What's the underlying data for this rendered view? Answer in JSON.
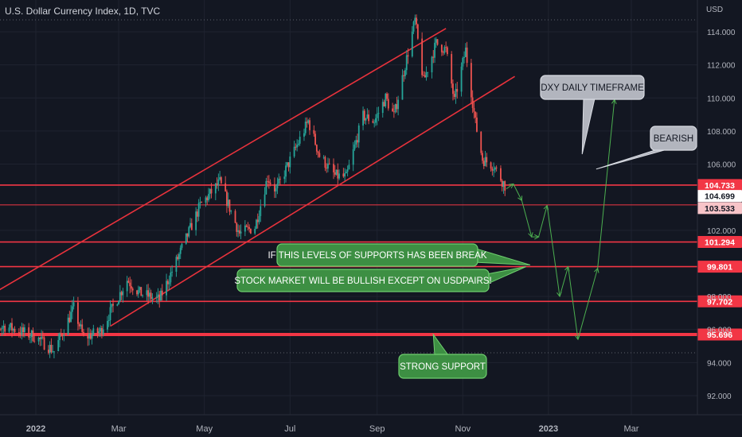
{
  "header": {
    "title": "U.S. Dollar Currency Index, 1D, TVC",
    "currency": "USD"
  },
  "colors": {
    "background": "#131722",
    "up": "#26a69a",
    "down": "#ef5350",
    "channel": "#e8323c",
    "level_line": "#f23645",
    "projection": "#4caf50",
    "callout_green": "#3d8f43",
    "callout_grey": "#b2b5be"
  },
  "chart_data": {
    "type": "candlestick",
    "instrument": "U.S. Dollar Currency Index",
    "timeframe": "1D",
    "ylim": [
      90.8,
      116.0
    ],
    "y_ticks": [
      {
        "v": 114,
        "label": "114.000"
      },
      {
        "v": 112,
        "label": "112.000"
      },
      {
        "v": 110,
        "label": "110.000"
      },
      {
        "v": 108,
        "label": "108.000"
      },
      {
        "v": 106,
        "label": "106.000"
      },
      {
        "v": 102,
        "label": "102.000"
      },
      {
        "v": 98,
        "label": "98.000"
      },
      {
        "v": 96,
        "label": "96.000"
      },
      {
        "v": 94,
        "label": "94.000"
      },
      {
        "v": 92,
        "label": "92.000"
      }
    ],
    "x_ticks": [
      {
        "date": "2022-01-01",
        "label": "2022"
      },
      {
        "date": "2022-03-01",
        "label": "Mar"
      },
      {
        "date": "2022-05-01",
        "label": "May"
      },
      {
        "date": "2022-07-01",
        "label": "Jul"
      },
      {
        "date": "2022-09-01",
        "label": "Sep"
      },
      {
        "date": "2022-11-01",
        "label": "Nov"
      },
      {
        "date": "2023-01-01",
        "label": "2023"
      },
      {
        "date": "2023-03-01",
        "label": "Mar"
      }
    ],
    "price_path": [
      [
        "2021-11-22",
        95.9
      ],
      [
        "2021-12-10",
        96.2
      ],
      [
        "2021-12-31",
        95.6
      ],
      [
        "2022-01-14",
        94.7
      ],
      [
        "2022-01-28",
        97.3
      ],
      [
        "2022-02-04",
        95.5
      ],
      [
        "2022-02-16",
        95.9
      ],
      [
        "2022-03-07",
        99.0
      ],
      [
        "2022-03-16",
        98.2
      ],
      [
        "2022-03-30",
        97.8
      ],
      [
        "2022-04-13",
        100.5
      ],
      [
        "2022-04-28",
        103.5
      ],
      [
        "2022-05-12",
        104.9
      ],
      [
        "2022-05-26",
        101.8
      ],
      [
        "2022-06-06",
        102.2
      ],
      [
        "2022-06-15",
        105.2
      ],
      [
        "2022-06-21",
        104.4
      ],
      [
        "2022-07-14",
        108.6
      ],
      [
        "2022-07-22",
        106.5
      ],
      [
        "2022-08-02",
        105.3
      ],
      [
        "2022-08-10",
        105.2
      ],
      [
        "2022-08-22",
        108.9
      ],
      [
        "2022-08-30",
        108.6
      ],
      [
        "2022-09-07",
        110.0
      ],
      [
        "2022-09-13",
        108.9
      ],
      [
        "2022-09-28",
        114.7
      ],
      [
        "2022-10-04",
        111.0
      ],
      [
        "2022-10-13",
        113.3
      ],
      [
        "2022-10-20",
        112.9
      ],
      [
        "2022-10-26",
        109.8
      ],
      [
        "2022-11-03",
        112.9
      ],
      [
        "2022-11-10",
        108.5
      ],
      [
        "2022-11-15",
        106.3
      ],
      [
        "2022-11-23",
        105.9
      ],
      [
        "2022-12-01",
        104.7
      ]
    ],
    "channel": {
      "upper": {
        "start": [
          "2021-11-22",
          97.7
        ],
        "end": [
          "2022-10-20",
          114.2
        ]
      },
      "lower": {
        "start": [
          "2022-02-23",
          96.2
        ],
        "end": [
          "2022-12-08",
          111.3
        ]
      }
    },
    "levels": [
      {
        "value": 104.733,
        "label": "104.733",
        "style": "filled"
      },
      {
        "value": 104.699,
        "label": "104.699",
        "style": "plain"
      },
      {
        "value": 103.533,
        "label": "103.533",
        "style": "outline"
      },
      {
        "value": 101.294,
        "label": "101.294",
        "style": "filled"
      },
      {
        "value": 99.801,
        "label": "99.801",
        "style": "filled"
      },
      {
        "value": 97.702,
        "label": "97.702",
        "style": "filled"
      },
      {
        "value": 95.696,
        "label": "95.696",
        "style": "filled"
      }
    ],
    "projection": [
      [
        "2022-12-02",
        104.5
      ],
      [
        "2022-12-07",
        104.8
      ],
      [
        "2022-12-13",
        103.8
      ],
      [
        "2022-12-20",
        101.6
      ],
      [
        "2022-12-25",
        101.6
      ],
      [
        "2022-12-31",
        103.5
      ],
      [
        "2023-01-09",
        98.0
      ],
      [
        "2023-01-15",
        99.8
      ],
      [
        "2023-01-22",
        95.4
      ],
      [
        "2023-02-05",
        99.7
      ],
      [
        "2023-02-17",
        109.9
      ]
    ],
    "annotations": [
      {
        "text": "DXY DAILY TIMEFRAME",
        "style": "grey",
        "pointer": [
          "2023-01-25",
          106.6
        ]
      },
      {
        "text": "BEARISH",
        "style": "grey",
        "pointer": [
          "2023-02-04",
          105.7
        ]
      },
      {
        "text": "IF THIS LEVELS OF SUPPORTS HAS BEEN BREAK",
        "style": "green",
        "pointer": [
          "2022-12-19",
          99.9
        ]
      },
      {
        "text": "STOCK MARKET WILL BE BULLISH EXCEPT ON USDPAIRS!",
        "style": "green",
        "pointer": [
          "2022-12-16",
          99.8
        ]
      },
      {
        "text": "STRONG SUPPORT",
        "style": "green",
        "pointer": [
          "2022-10-11",
          95.7
        ]
      }
    ]
  }
}
